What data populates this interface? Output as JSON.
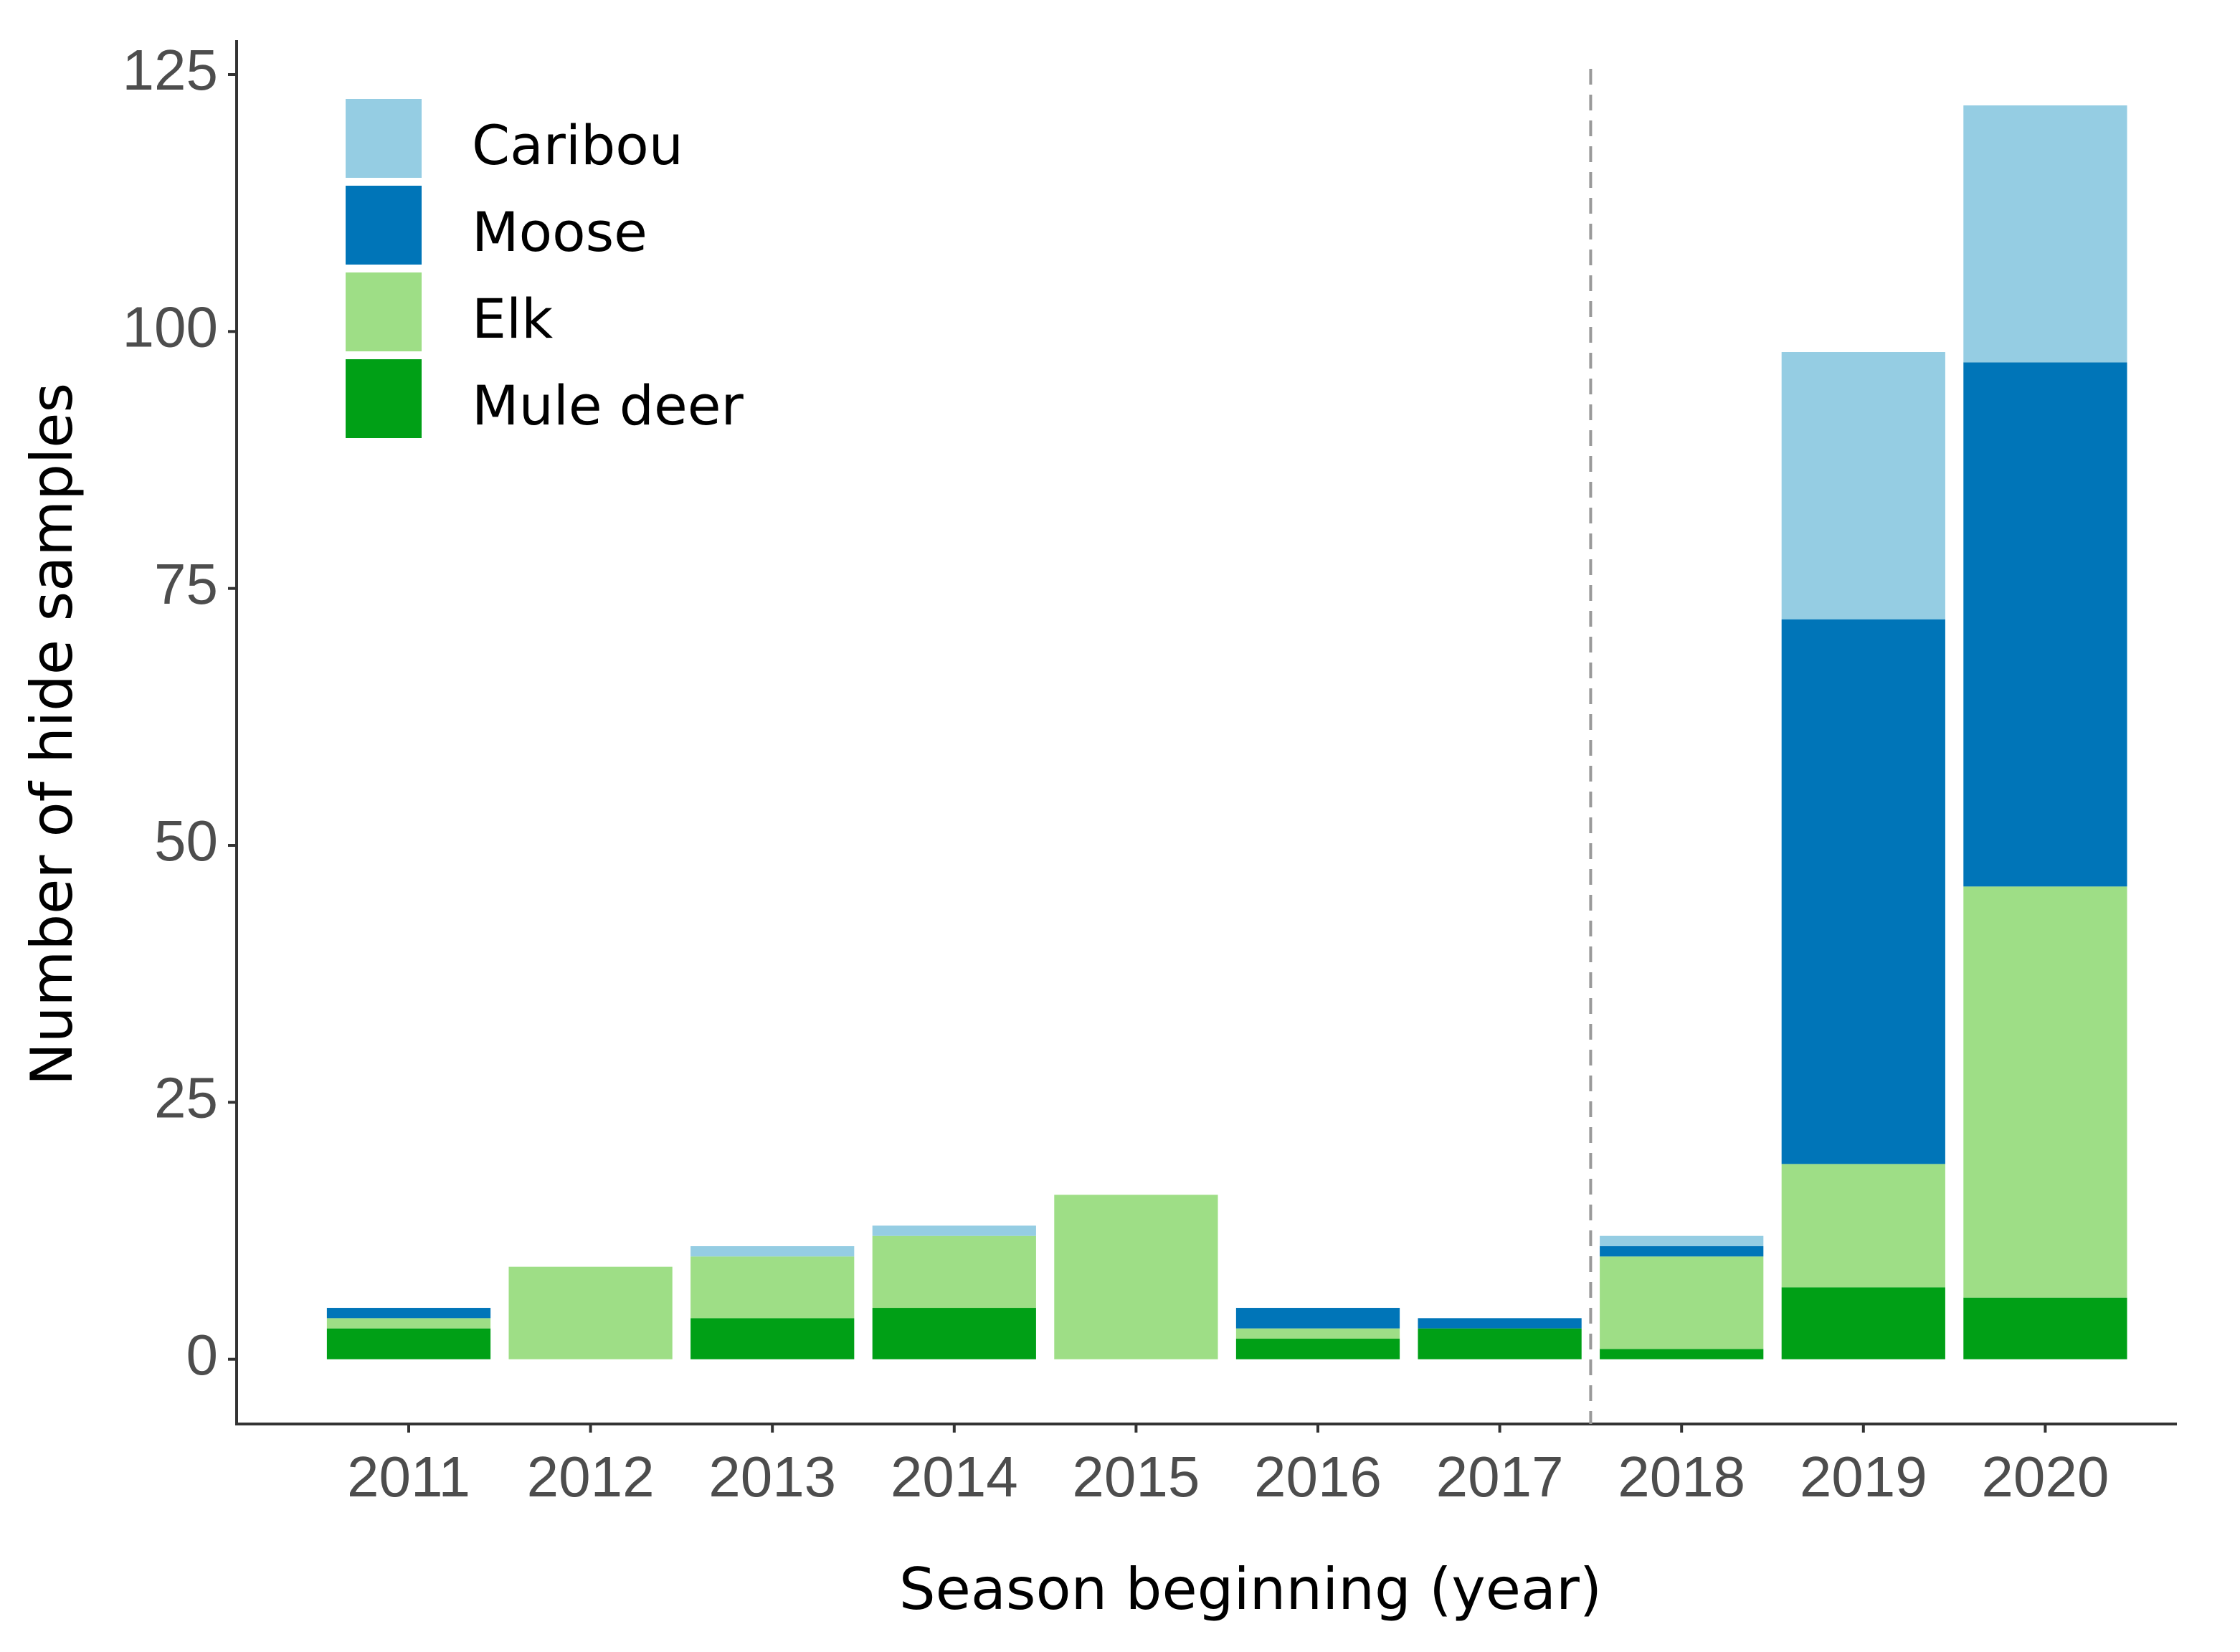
{
  "chart_data": {
    "type": "stacked-bar",
    "x_label": "Season beginning (year)",
    "y_label": "Number of hide samples",
    "categories": [
      "2011",
      "2012",
      "2013",
      "2014",
      "2015",
      "2016",
      "2017",
      "2018",
      "2019",
      "2020"
    ],
    "series": [
      {
        "name": "Caribou",
        "color": "#95cde3",
        "values": [
          0,
          0,
          1,
          1,
          0,
          0,
          0,
          1,
          26,
          25
        ]
      },
      {
        "name": "Moose",
        "color": "#0075b8",
        "values": [
          1,
          0,
          0,
          0,
          0,
          2,
          1,
          1,
          53,
          51
        ]
      },
      {
        "name": "Elk",
        "color": "#9ede86",
        "values": [
          1,
          9,
          6,
          7,
          16,
          1,
          0,
          9,
          12,
          40
        ]
      },
      {
        "name": "Mule deer",
        "color": "#00a016",
        "values": [
          3,
          0,
          4,
          5,
          0,
          2,
          3,
          1,
          7,
          6
        ]
      }
    ],
    "ylim": [
      -6.3,
      128
    ],
    "yticks": [
      0,
      25,
      50,
      75,
      100,
      125
    ],
    "grid": false,
    "legend": "top-left"
  }
}
